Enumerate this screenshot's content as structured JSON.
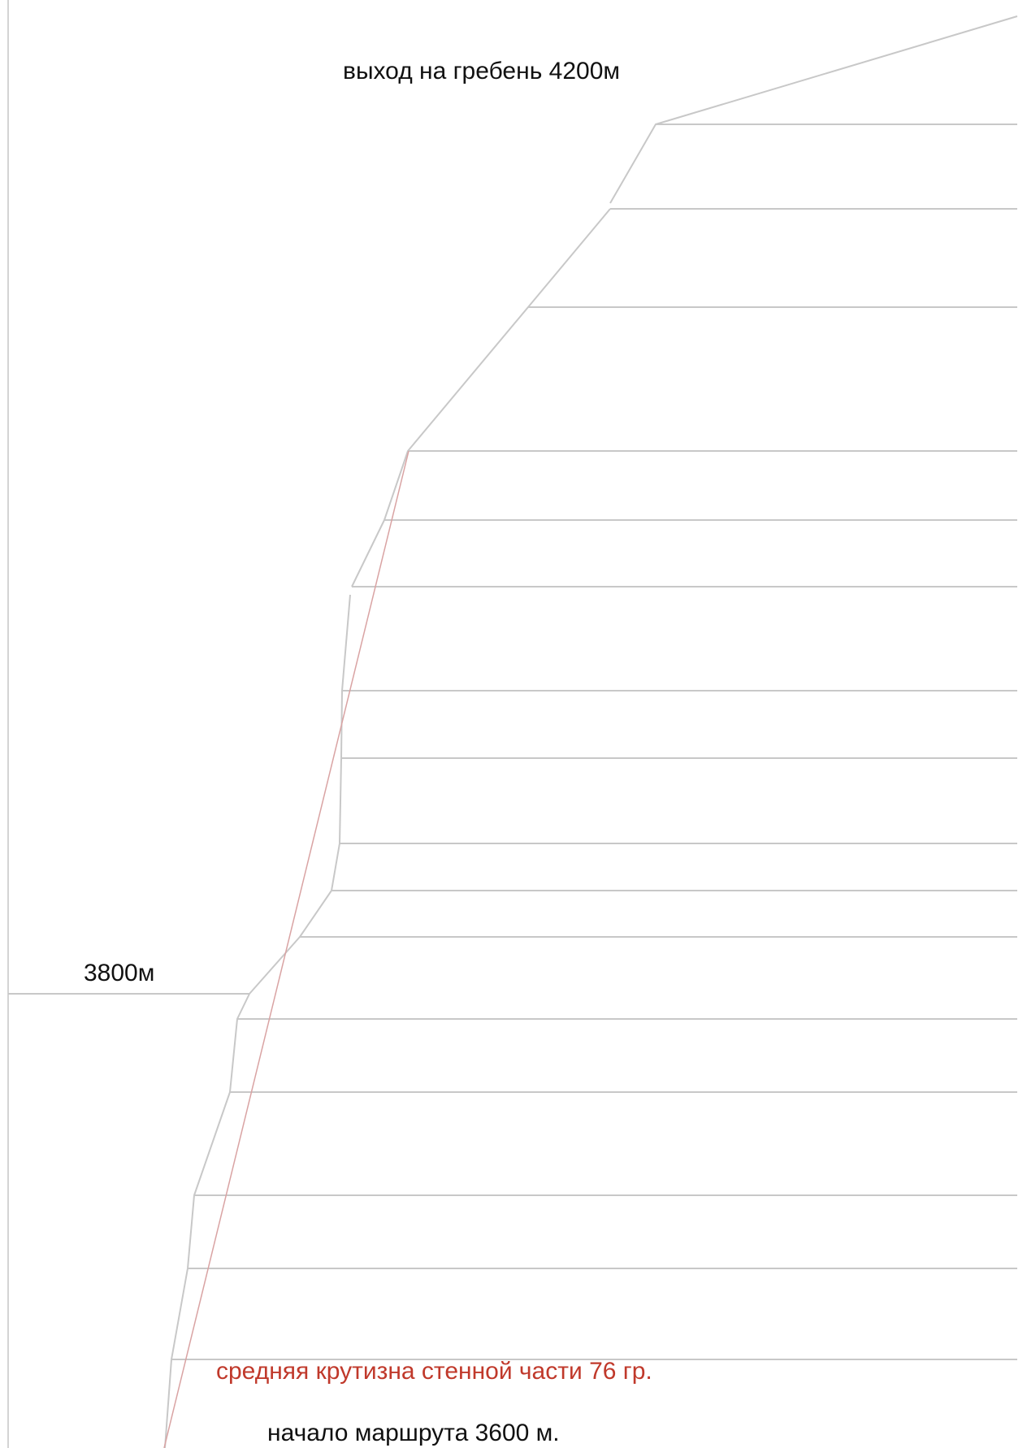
{
  "labels": {
    "ridge_exit": "выход на гребень 4200м",
    "altitude_mid": "3800м",
    "avg_steepness": "средняя крутизна стенной части 76 гр.",
    "route_start": "начало маршрута 3600 м."
  },
  "colors": {
    "profile_line": "#c8c8c8",
    "frame_line": "#d4d4d4",
    "text_default": "#111111",
    "text_accent": "#c0392b",
    "steepness_line": "#d9a3a3"
  }
}
